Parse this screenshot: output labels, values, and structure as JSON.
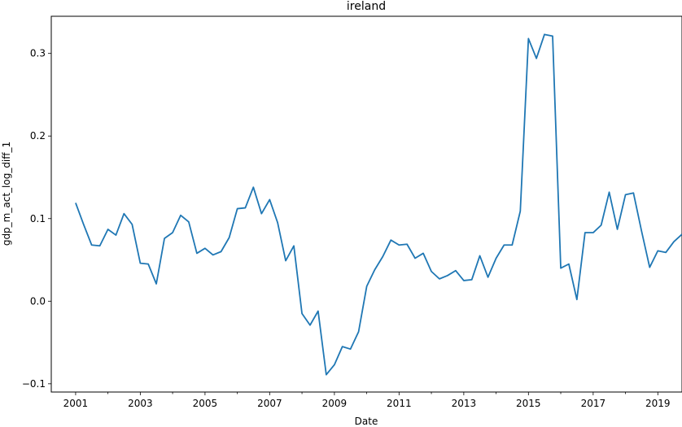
{
  "chart_data": {
    "type": "line",
    "title": "ireland",
    "xlabel": "Date",
    "ylabel": "gdp_m_act_log_diff_1",
    "xlim": [
      "2000-04-01",
      "2019-10-01"
    ],
    "ylim": [
      -0.11,
      0.345
    ],
    "grid": false,
    "legend": "none",
    "x_ticks": [
      "2001",
      "2003",
      "2005",
      "2007",
      "2009",
      "2011",
      "2013",
      "2015",
      "2017",
      "2019"
    ],
    "y_ticks": [
      "−0.1",
      "0.0",
      "0.1",
      "0.2",
      "0.3"
    ],
    "series": [
      {
        "color": "#1f77b4",
        "x": [
          "2001-01-01",
          "2001-04-01",
          "2001-07-01",
          "2001-10-01",
          "2002-01-01",
          "2002-04-01",
          "2002-07-01",
          "2002-10-01",
          "2003-01-01",
          "2003-04-01",
          "2003-07-01",
          "2003-10-01",
          "2004-01-01",
          "2004-04-01",
          "2004-07-01",
          "2004-10-01",
          "2005-01-01",
          "2005-04-01",
          "2005-07-01",
          "2005-10-01",
          "2006-01-01",
          "2006-04-01",
          "2006-07-01",
          "2006-10-01",
          "2007-01-01",
          "2007-04-01",
          "2007-07-01",
          "2007-10-01",
          "2008-01-01",
          "2008-04-01",
          "2008-07-01",
          "2008-10-01",
          "2009-01-01",
          "2009-04-01",
          "2009-07-01",
          "2009-10-01",
          "2010-01-01",
          "2010-04-01",
          "2010-07-01",
          "2010-10-01",
          "2011-01-01",
          "2011-04-01",
          "2011-07-01",
          "2011-10-01",
          "2012-01-01",
          "2012-04-01",
          "2012-07-01",
          "2012-10-01",
          "2013-01-01",
          "2013-04-01",
          "2013-07-01",
          "2013-10-01",
          "2014-01-01",
          "2014-04-01",
          "2014-07-01",
          "2014-10-01",
          "2015-01-01",
          "2015-04-01",
          "2015-07-01",
          "2015-10-01",
          "2016-01-01",
          "2016-04-01",
          "2016-07-01",
          "2016-10-01",
          "2017-01-01",
          "2017-04-01",
          "2017-07-01",
          "2017-10-01",
          "2018-01-01",
          "2018-04-01",
          "2018-07-01",
          "2018-10-01",
          "2019-01-01",
          "2019-04-01",
          "2019-07-01",
          "2019-10-01"
        ],
        "values": [
          0.119,
          0.093,
          0.068,
          0.067,
          0.087,
          0.08,
          0.106,
          0.093,
          0.046,
          0.045,
          0.021,
          0.076,
          0.083,
          0.104,
          0.096,
          0.058,
          0.064,
          0.056,
          0.06,
          0.077,
          0.112,
          0.113,
          0.138,
          0.106,
          0.123,
          0.095,
          0.049,
          0.067,
          -0.015,
          -0.029,
          -0.012,
          -0.089,
          -0.077,
          -0.055,
          -0.058,
          -0.037,
          0.018,
          0.038,
          0.054,
          0.074,
          0.068,
          0.069,
          0.052,
          0.058,
          0.036,
          0.027,
          0.031,
          0.037,
          0.025,
          0.026,
          0.055,
          0.029,
          0.052,
          0.068,
          0.068,
          0.109,
          0.318,
          0.294,
          0.323,
          0.321,
          0.04,
          0.045,
          0.002,
          0.083,
          0.083,
          0.092,
          0.132,
          0.087,
          0.129,
          0.131,
          0.085,
          0.041,
          0.061,
          0.059,
          0.072,
          0.081
        ]
      }
    ]
  }
}
